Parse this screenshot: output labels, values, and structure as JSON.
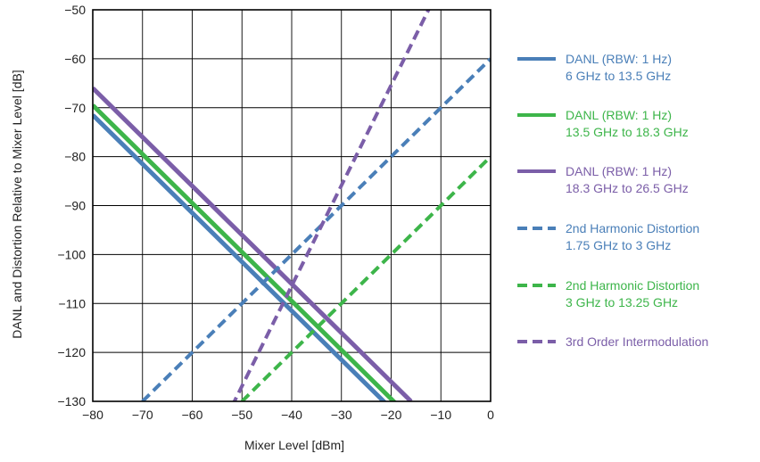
{
  "chart_data": {
    "type": "line",
    "xlabel": "Mixer Level [dBm]",
    "ylabel": "DANL and Distortion Relative to Mixer Level [dB]",
    "xlim": [
      -80,
      0
    ],
    "ylim": [
      -130,
      -50
    ],
    "x_ticks": [
      "−80",
      "−70",
      "−60",
      "−50",
      "−40",
      "−30",
      "−20",
      "−10",
      "0"
    ],
    "y_ticks": [
      "−50",
      "−60",
      "−70",
      "−80",
      "−90",
      "−100",
      "−110",
      "−120",
      "−130"
    ],
    "grid": true,
    "legend_position": "right",
    "series": [
      {
        "label1": "DANL (RBW: 1 Hz)",
        "label2": "6 GHz to 13.5 GHz",
        "color": "#4a7fb8",
        "dash": false,
        "x": [
          -80,
          -20
        ],
        "y": [
          -71.5,
          -131.5
        ]
      },
      {
        "label1": "DANL (RBW: 1 Hz)",
        "label2": "13.5 GHz to 18.3 GHz",
        "color": "#3db54a",
        "dash": false,
        "x": [
          -80,
          -18.5
        ],
        "y": [
          -69.5,
          -131
        ]
      },
      {
        "label1": "DANL (RBW: 1 Hz)",
        "label2": "18.3 GHz to 26.5 GHz",
        "color": "#7b5ea8",
        "dash": false,
        "x": [
          -80,
          -16
        ],
        "y": [
          -66,
          -130
        ]
      },
      {
        "label1": "2nd Harmonic Distortion",
        "label2": "1.75 GHz to 3 GHz",
        "color": "#4a7fb8",
        "dash": true,
        "x": [
          -70,
          0
        ],
        "y": [
          -130,
          -60
        ]
      },
      {
        "label1": "2nd Harmonic Distortion",
        "label2": "3 GHz to 13.25 GHz",
        "color": "#3db54a",
        "dash": true,
        "x": [
          -50,
          0
        ],
        "y": [
          -130,
          -80
        ]
      },
      {
        "label1": "3rd Order Intermodulation",
        "label2": "",
        "color": "#7b5ea8",
        "dash": true,
        "x": [
          -52,
          -12
        ],
        "y": [
          -131,
          -49
        ]
      }
    ]
  }
}
